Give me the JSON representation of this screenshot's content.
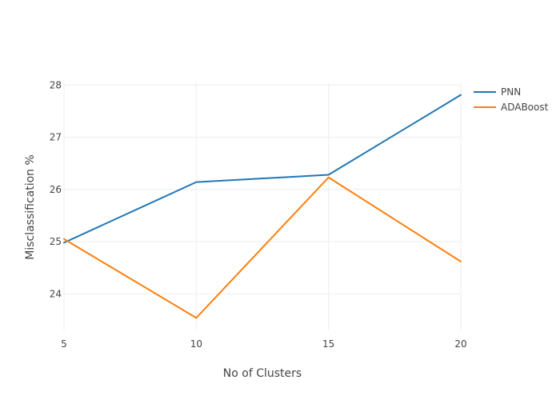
{
  "chart_data": {
    "type": "line",
    "title": "",
    "xlabel": "No of Clusters",
    "ylabel": "Misclassification %",
    "x": [
      5,
      10,
      15,
      20
    ],
    "xlim": [
      5,
      20
    ],
    "ylim": [
      23.3,
      28.05
    ],
    "xticks": [
      5,
      10,
      15,
      20
    ],
    "yticks": [
      24,
      25,
      26,
      27,
      28
    ],
    "grid": true,
    "legend_position": "top-right",
    "series": [
      {
        "name": "PNN",
        "color": "#1f77b4",
        "values": [
          24.98,
          26.14,
          26.28,
          27.81
        ]
      },
      {
        "name": "ADABoost",
        "color": "#ff7f0e",
        "values": [
          25.05,
          23.54,
          26.23,
          24.62
        ]
      }
    ]
  }
}
